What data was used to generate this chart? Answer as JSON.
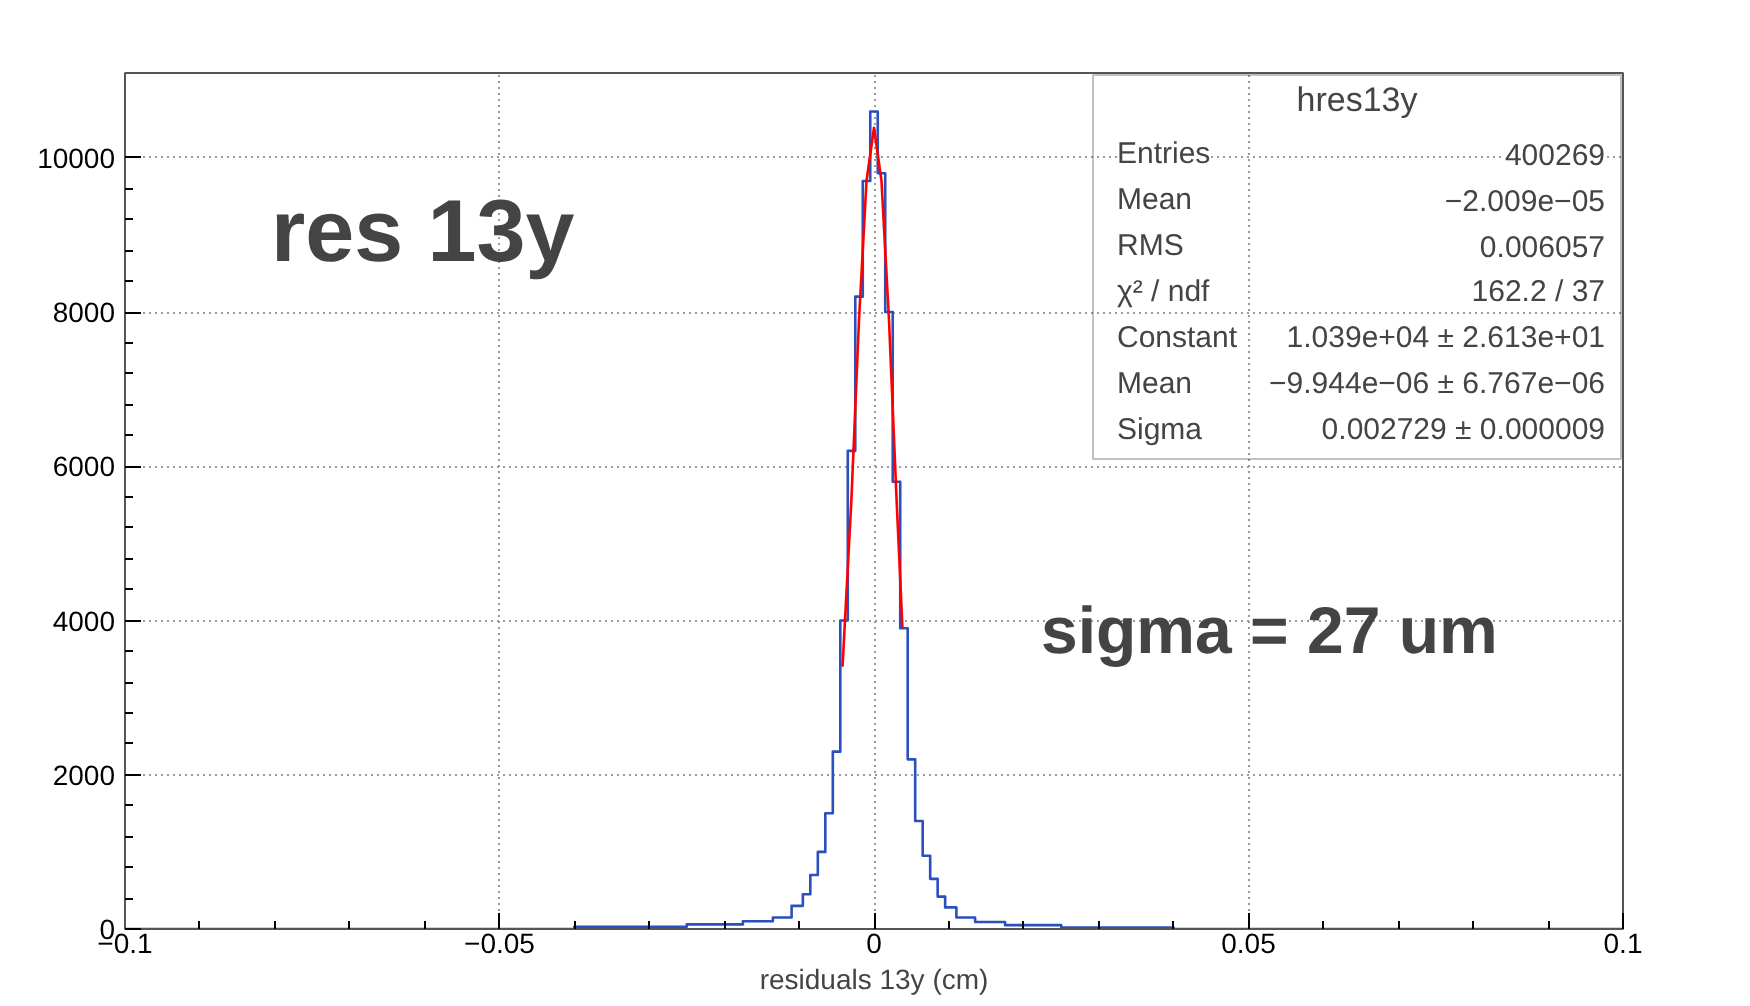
{
  "chart_data": {
    "type": "step",
    "title": "hres13y",
    "xlabel": "residuals 13y (cm)",
    "xlim": [
      -0.1,
      0.1
    ],
    "ylim": [
      0,
      11100
    ],
    "xticks": [
      {
        "value": -0.1,
        "label": "−0.1"
      },
      {
        "value": -0.05,
        "label": "−0.05"
      },
      0,
      0.05,
      0.1
    ],
    "yticks": [
      0,
      2000,
      4000,
      6000,
      8000,
      10000
    ],
    "grid": true,
    "series": [
      {
        "color": "#2b4fbf",
        "x": [
          -0.1,
          -0.07,
          -0.05,
          -0.03,
          -0.02,
          -0.015,
          -0.012,
          -0.01,
          -0.009,
          -0.008,
          -0.007,
          -0.006,
          -0.005,
          -0.004,
          -0.003,
          -0.002,
          -0.001,
          0,
          0.001,
          0.002,
          0.003,
          0.004,
          0.005,
          0.006,
          0.007,
          0.008,
          0.009,
          0.01,
          0.012,
          0.015,
          0.02,
          0.03,
          0.05,
          0.07,
          0.1
        ],
        "values": [
          0,
          0,
          0,
          30,
          60,
          100,
          150,
          300,
          450,
          700,
          1000,
          1500,
          2300,
          4000,
          6200,
          8200,
          9700,
          10600,
          9800,
          8000,
          5800,
          3900,
          2200,
          1400,
          950,
          650,
          420,
          280,
          150,
          90,
          50,
          20,
          0,
          0,
          0
        ]
      },
      {
        "type": "line",
        "color": "#ff0000",
        "x": [
          -0.0042,
          -0.003,
          -0.002,
          -0.001,
          0,
          0.001,
          0.002,
          0.003,
          0.0038
        ],
        "values": [
          3400,
          5600,
          7900,
          9700,
          10390,
          9700,
          7900,
          5600,
          3900
        ]
      }
    ],
    "annotations": [
      "res 13y",
      "sigma = 27 um",
      "Entries",
      "400269",
      "Mean",
      "−2.009e−05",
      "RMS",
      "0.006057",
      "χ² / ndf",
      "162.2 / 37",
      "Constant",
      "1.039e+04 ± 2.613e+01",
      "Mean",
      "−9.944e−06 ± 6.767e−06",
      "Sigma",
      "0.002729 ± 0.000009"
    ]
  }
}
